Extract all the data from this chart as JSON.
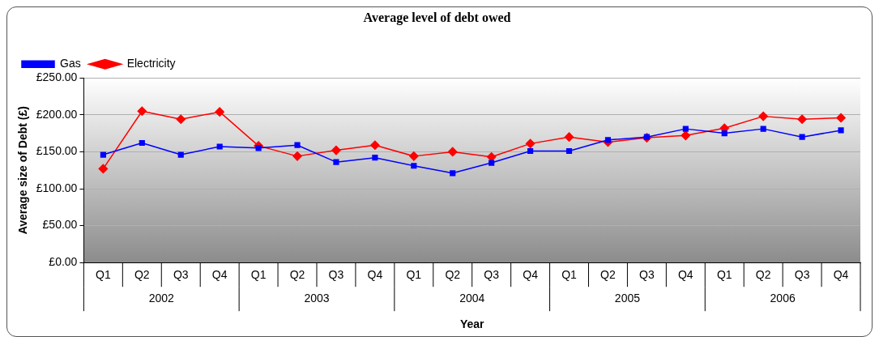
{
  "chart_data": {
    "type": "line",
    "title": "Average level of debt owed",
    "xlabel": "Year",
    "ylabel": "Average size of Debt (£)",
    "categories": [
      "Q1",
      "Q2",
      "Q3",
      "Q4",
      "Q1",
      "Q2",
      "Q3",
      "Q4",
      "Q1",
      "Q2",
      "Q3",
      "Q4",
      "Q1",
      "Q2",
      "Q3",
      "Q4",
      "Q1",
      "Q2",
      "Q3",
      "Q4"
    ],
    "annotations": [
      "2002",
      "2003",
      "2004",
      "2005",
      "2006"
    ],
    "series": [
      {
        "name": "Electricity",
        "color": "#ff0000",
        "marker": "diamond",
        "values": [
          127,
          205,
          194,
          204,
          158,
          144,
          152,
          159,
          144,
          150,
          143,
          161,
          170,
          163,
          169,
          172,
          182,
          198,
          194,
          196
        ]
      },
      {
        "name": "Gas",
        "color": "#0000ff",
        "marker": "square",
        "values": [
          146,
          162,
          146,
          157,
          155,
          159,
          136,
          142,
          131,
          121,
          135,
          151,
          151,
          166,
          170,
          181,
          175,
          181,
          170,
          179
        ]
      }
    ],
    "ylim": [
      0,
      250
    ],
    "yticks": [
      {
        "value": 0,
        "label": "£0.00"
      },
      {
        "value": 50,
        "label": "£50.00"
      },
      {
        "value": 100,
        "label": "£100.00"
      },
      {
        "value": 150,
        "label": "£150.00"
      },
      {
        "value": 200,
        "label": "£200.00"
      },
      {
        "value": 250,
        "label": "£250.00"
      }
    ],
    "grid": "y",
    "legend": "top left",
    "line_style": "solid"
  }
}
